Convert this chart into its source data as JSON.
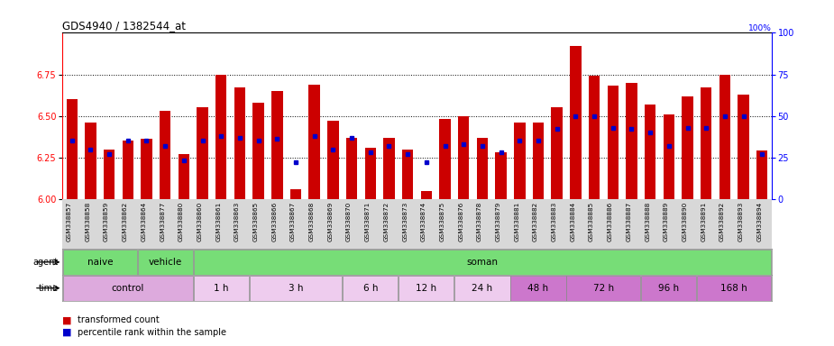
{
  "title": "GDS4940 / 1382544_at",
  "samples": [
    "GSM338857",
    "GSM338858",
    "GSM338859",
    "GSM338862",
    "GSM338864",
    "GSM338877",
    "GSM338880",
    "GSM338860",
    "GSM338861",
    "GSM338863",
    "GSM338865",
    "GSM338866",
    "GSM338867",
    "GSM338868",
    "GSM338869",
    "GSM338870",
    "GSM338871",
    "GSM338872",
    "GSM338873",
    "GSM338874",
    "GSM338875",
    "GSM338876",
    "GSM338878",
    "GSM338879",
    "GSM338881",
    "GSM338882",
    "GSM338883",
    "GSM338884",
    "GSM338885",
    "GSM338886",
    "GSM338887",
    "GSM338888",
    "GSM338889",
    "GSM338890",
    "GSM338891",
    "GSM338892",
    "GSM338893",
    "GSM338894"
  ],
  "bar_heights": [
    6.6,
    6.46,
    6.3,
    6.35,
    6.36,
    6.53,
    6.27,
    6.55,
    6.75,
    6.67,
    6.58,
    6.65,
    6.06,
    6.69,
    6.47,
    6.37,
    6.31,
    6.37,
    6.3,
    6.05,
    6.48,
    6.5,
    6.37,
    6.28,
    6.46,
    6.46,
    6.55,
    6.92,
    6.74,
    6.68,
    6.7,
    6.57,
    6.51,
    6.62,
    6.67,
    6.75,
    6.63,
    6.29
  ],
  "percentile_ranks": [
    35,
    30,
    27,
    35,
    35,
    32,
    23,
    35,
    38,
    37,
    35,
    36,
    22,
    38,
    30,
    37,
    28,
    32,
    27,
    22,
    32,
    33,
    32,
    28,
    35,
    35,
    42,
    50,
    50,
    43,
    42,
    40,
    32,
    43,
    43,
    50,
    50,
    27
  ],
  "ylim_left": [
    6.0,
    7.0
  ],
  "ylim_right": [
    0,
    100
  ],
  "yticks_left": [
    6.0,
    6.25,
    6.5,
    6.75
  ],
  "yticks_right": [
    0,
    25,
    50,
    75,
    100
  ],
  "bar_color": "#cc0000",
  "percentile_color": "#0000cc",
  "agent_spans": [
    {
      "start": 0,
      "end": 3,
      "label": "naive",
      "color": "#77dd77"
    },
    {
      "start": 4,
      "end": 6,
      "label": "vehicle",
      "color": "#77dd77"
    },
    {
      "start": 7,
      "end": 37,
      "label": "soman",
      "color": "#77dd77"
    }
  ],
  "time_spans": [
    {
      "start": 0,
      "end": 6,
      "label": "control",
      "color": "#ddaadd"
    },
    {
      "start": 7,
      "end": 9,
      "label": "1 h",
      "color": "#eeccee"
    },
    {
      "start": 10,
      "end": 14,
      "label": "3 h",
      "color": "#eeccee"
    },
    {
      "start": 15,
      "end": 17,
      "label": "6 h",
      "color": "#eeccee"
    },
    {
      "start": 18,
      "end": 20,
      "label": "12 h",
      "color": "#eeccee"
    },
    {
      "start": 21,
      "end": 23,
      "label": "24 h",
      "color": "#eeccee"
    },
    {
      "start": 24,
      "end": 26,
      "label": "48 h",
      "color": "#cc77cc"
    },
    {
      "start": 27,
      "end": 30,
      "label": "72 h",
      "color": "#cc77cc"
    },
    {
      "start": 31,
      "end": 33,
      "label": "96 h",
      "color": "#cc77cc"
    },
    {
      "start": 34,
      "end": 37,
      "label": "168 h",
      "color": "#cc77cc"
    }
  ],
  "xticklabel_bg": "#d8d8d8"
}
